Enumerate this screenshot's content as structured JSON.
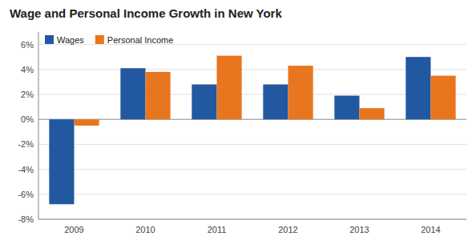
{
  "chart_data": {
    "type": "bar",
    "title": "Wage and Personal Income Growth in New York",
    "categories": [
      "2009",
      "2010",
      "2011",
      "2012",
      "2013",
      "2014"
    ],
    "series": [
      {
        "name": "Wages",
        "color": "#2158a0",
        "values": [
          -6.8,
          4.1,
          2.8,
          2.8,
          1.9,
          5.0
        ]
      },
      {
        "name": "Personal Income",
        "color": "#e8761e",
        "values": [
          -0.5,
          3.8,
          5.1,
          4.3,
          0.9,
          3.5
        ]
      }
    ],
    "ylim": [
      -8,
      7
    ],
    "yticks": [
      {
        "value": -8,
        "label": "-8%"
      },
      {
        "value": -6,
        "label": "-6%"
      },
      {
        "value": -4,
        "label": "-4%"
      },
      {
        "value": -2,
        "label": "-2%"
      },
      {
        "value": 0,
        "label": "0%"
      },
      {
        "value": 2,
        "label": "2%"
      },
      {
        "value": 4,
        "label": "4%"
      },
      {
        "value": 6,
        "label": "6%"
      }
    ],
    "grid": true,
    "legend": "top-left"
  }
}
